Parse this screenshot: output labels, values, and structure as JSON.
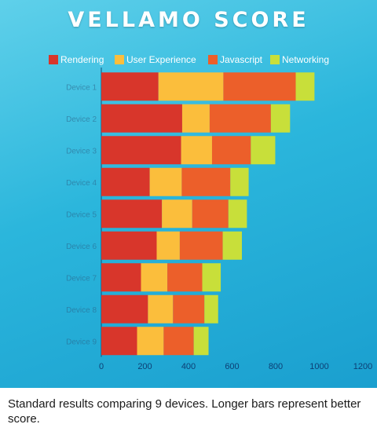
{
  "chart_data": {
    "type": "bar",
    "orientation": "horizontal",
    "stacked": true,
    "title": "VELLAMO SCORE",
    "categories": [
      "Device 1",
      "Device 2",
      "Device 3",
      "Device 4",
      "Device 5",
      "Device 6",
      "Device 7",
      "Device 8",
      "Device 9"
    ],
    "series": [
      {
        "name": "Rendering",
        "color": "#d8362b",
        "values": [
          262,
          371,
          366,
          222,
          278,
          254,
          182,
          214,
          164
        ]
      },
      {
        "name": "User Experience",
        "color": "#fbbe3c",
        "values": [
          298,
          126,
          142,
          147,
          139,
          106,
          121,
          115,
          122
        ]
      },
      {
        "name": "Javascript",
        "color": "#ec5f2a",
        "values": [
          332,
          281,
          178,
          223,
          166,
          197,
          160,
          144,
          138
        ]
      },
      {
        "name": "Networking",
        "color": "#c8df3a",
        "values": [
          86,
          88,
          112,
          84,
          85,
          88,
          85,
          63,
          68
        ]
      }
    ],
    "xlim": [
      0,
      1200
    ],
    "xticks": [
      "0",
      "200",
      "400",
      "600",
      "800",
      "1000",
      "1200"
    ],
    "legend": "top"
  },
  "caption": "Standard results comparing 9 devices. Longer bars represent better score."
}
